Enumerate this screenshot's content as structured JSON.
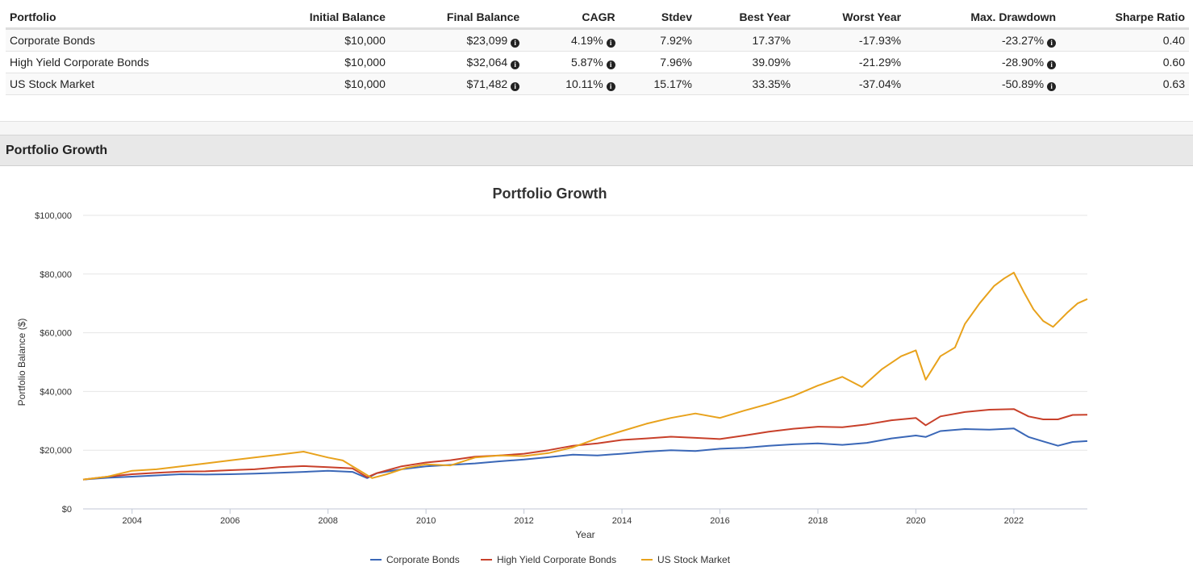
{
  "table": {
    "headers": [
      "Portfolio",
      "Initial Balance",
      "Final Balance",
      "CAGR",
      "Stdev",
      "Best Year",
      "Worst Year",
      "Max. Drawdown",
      "Sharpe Ratio"
    ],
    "rows": [
      {
        "portfolio": "Corporate Bonds",
        "initial": "$10,000",
        "final": "$23,099",
        "cagr": "4.19%",
        "stdev": "7.92%",
        "best": "17.37%",
        "worst": "-17.93%",
        "drawdown": "-23.27%",
        "sharpe": "0.40"
      },
      {
        "portfolio": "High Yield Corporate Bonds",
        "initial": "$10,000",
        "final": "$32,064",
        "cagr": "5.87%",
        "stdev": "7.96%",
        "best": "39.09%",
        "worst": "-21.29%",
        "drawdown": "-28.90%",
        "sharpe": "0.60"
      },
      {
        "portfolio": "US Stock Market",
        "initial": "$10,000",
        "final": "$71,482",
        "cagr": "10.11%",
        "stdev": "15.17%",
        "best": "33.35%",
        "worst": "-37.04%",
        "drawdown": "-50.89%",
        "sharpe": "0.63"
      }
    ],
    "info_icon": "info-circle-icon"
  },
  "section": {
    "title": "Portfolio Growth"
  },
  "chart_data": {
    "type": "line",
    "title": "Portfolio Growth",
    "xlabel": "Year",
    "ylabel": "Portfolio Balance ($)",
    "xlim": [
      2003.0,
      2023.5
    ],
    "ylim": [
      0,
      100000
    ],
    "xticks": [
      2004,
      2006,
      2008,
      2010,
      2012,
      2014,
      2016,
      2018,
      2020,
      2022
    ],
    "yticks": [
      0,
      20000,
      40000,
      60000,
      80000,
      100000
    ],
    "ytick_labels": [
      "$0",
      "$20,000",
      "$40,000",
      "$60,000",
      "$80,000",
      "$100,000"
    ],
    "grid": true,
    "legend": "bottom",
    "series": [
      {
        "name": "Corporate Bonds",
        "color": "#3a67b7",
        "x": [
          2003,
          2003.5,
          2004,
          2004.5,
          2005,
          2005.5,
          2006,
          2006.5,
          2007,
          2007.5,
          2008,
          2008.5,
          2008.8,
          2009,
          2009.5,
          2010,
          2010.5,
          2011,
          2011.5,
          2012,
          2012.5,
          2013,
          2013.5,
          2014,
          2014.5,
          2015,
          2015.5,
          2016,
          2016.5,
          2017,
          2017.5,
          2018,
          2018.5,
          2019,
          2019.5,
          2020,
          2020.2,
          2020.5,
          2021,
          2021.5,
          2022,
          2022.3,
          2022.6,
          2022.9,
          2023.2,
          2023.5
        ],
        "y": [
          10000,
          10600,
          11000,
          11400,
          11800,
          11700,
          11800,
          12000,
          12300,
          12600,
          13000,
          12600,
          10500,
          12200,
          13500,
          14500,
          15000,
          15500,
          16200,
          16800,
          17600,
          18500,
          18200,
          18800,
          19500,
          20000,
          19700,
          20500,
          20800,
          21500,
          22000,
          22300,
          21800,
          22500,
          24000,
          25000,
          24500,
          26500,
          27200,
          27000,
          27400,
          24500,
          23000,
          21500,
          22800,
          23099
        ]
      },
      {
        "name": "High Yield Corporate Bonds",
        "color": "#c8402a",
        "x": [
          2003,
          2003.5,
          2004,
          2004.5,
          2005,
          2005.5,
          2006,
          2006.5,
          2007,
          2007.5,
          2008,
          2008.5,
          2008.8,
          2009,
          2009.5,
          2010,
          2010.5,
          2011,
          2011.5,
          2012,
          2012.5,
          2013,
          2013.5,
          2014,
          2014.5,
          2015,
          2015.5,
          2016,
          2016.5,
          2017,
          2017.5,
          2018,
          2018.5,
          2019,
          2019.5,
          2020,
          2020.2,
          2020.5,
          2021,
          2021.5,
          2022,
          2022.3,
          2022.6,
          2022.9,
          2023.2,
          2023.5
        ],
        "y": [
          10000,
          11000,
          11800,
          12300,
          12700,
          12800,
          13200,
          13500,
          14200,
          14600,
          14200,
          13800,
          10800,
          12200,
          14500,
          15800,
          16600,
          17800,
          18200,
          18800,
          20000,
          21500,
          22300,
          23500,
          24000,
          24600,
          24200,
          23800,
          25000,
          26300,
          27300,
          28000,
          27800,
          28800,
          30200,
          31000,
          28500,
          31500,
          33000,
          33800,
          34000,
          31500,
          30500,
          30500,
          32000,
          32064
        ]
      },
      {
        "name": "US Stock Market",
        "color": "#e8a21c",
        "x": [
          2003,
          2003.5,
          2004,
          2004.5,
          2005,
          2005.5,
          2006,
          2006.5,
          2007,
          2007.5,
          2008,
          2008.3,
          2008.6,
          2008.9,
          2009.2,
          2009.6,
          2010,
          2010.5,
          2011,
          2011.5,
          2012,
          2012.5,
          2013,
          2013.5,
          2014,
          2014.5,
          2015,
          2015.5,
          2016,
          2016.5,
          2017,
          2017.5,
          2018,
          2018.5,
          2018.9,
          2019.3,
          2019.7,
          2020,
          2020.2,
          2020.5,
          2020.8,
          2021,
          2021.3,
          2021.6,
          2021.8,
          2022,
          2022.2,
          2022.4,
          2022.6,
          2022.8,
          2023.1,
          2023.3,
          2023.5
        ],
        "y": [
          10000,
          11000,
          13000,
          13500,
          14500,
          15500,
          16500,
          17500,
          18500,
          19500,
          17500,
          16500,
          13500,
          10500,
          11800,
          14000,
          15200,
          14800,
          17500,
          18200,
          18000,
          19000,
          21000,
          24000,
          26500,
          29000,
          31000,
          32500,
          31000,
          33500,
          35800,
          38500,
          42000,
          45000,
          41500,
          47500,
          52000,
          54000,
          44000,
          52000,
          55000,
          63000,
          70000,
          76000,
          78500,
          80500,
          74000,
          68000,
          64000,
          62000,
          67000,
          70000,
          71482
        ]
      }
    ]
  }
}
